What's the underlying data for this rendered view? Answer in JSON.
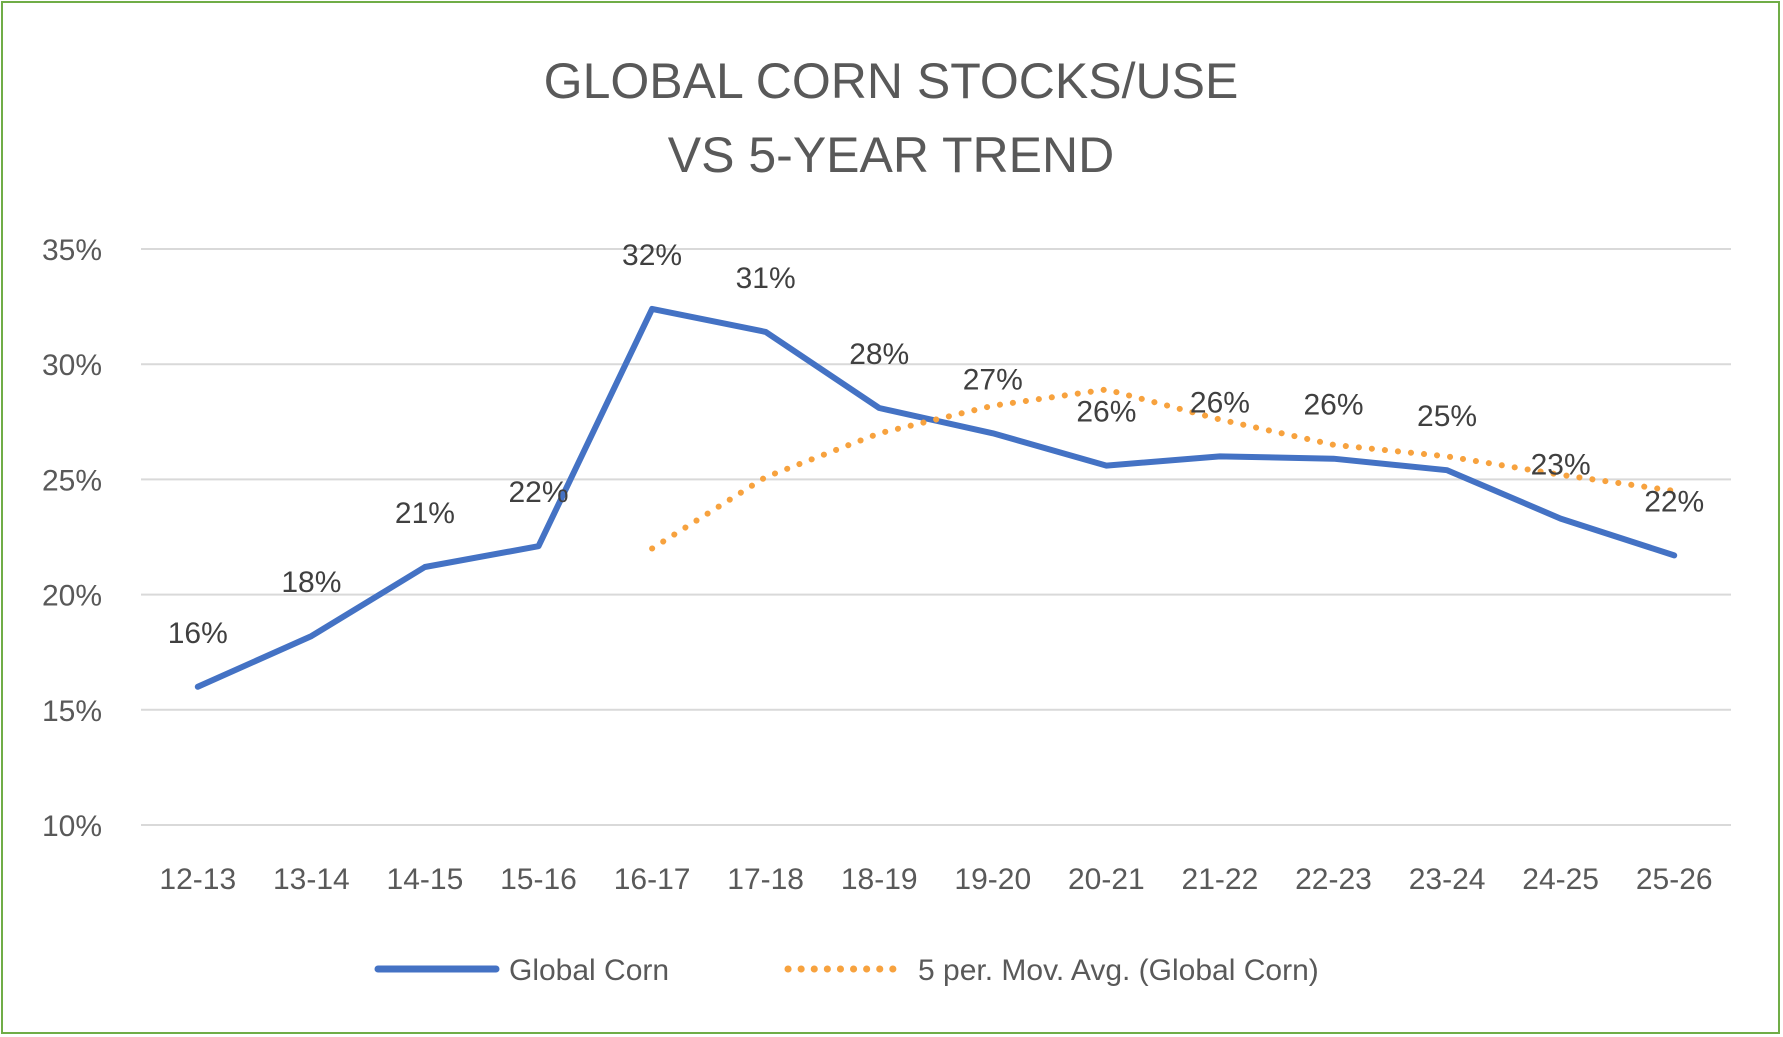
{
  "chart_data": {
    "type": "line",
    "title_lines": [
      "GLOBAL CORN STOCKS/USE",
      "VS 5-YEAR TREND"
    ],
    "categories": [
      "12-13",
      "13-14",
      "14-15",
      "15-16",
      "16-17",
      "17-18",
      "18-19",
      "19-20",
      "20-21",
      "21-22",
      "22-23",
      "23-24",
      "24-25",
      "25-26"
    ],
    "ylim": [
      10,
      35
    ],
    "yticks": [
      10,
      15,
      20,
      25,
      30,
      35
    ],
    "ytick_labels": [
      "10%",
      "15%",
      "20%",
      "25%",
      "30%",
      "35%"
    ],
    "grid": "horizontal",
    "legend_placement": "bottom",
    "series": [
      {
        "name": "Global Corn",
        "style": "solid",
        "color": "#4472c4",
        "values": [
          16.0,
          18.2,
          21.2,
          22.1,
          32.4,
          31.4,
          28.1,
          27.0,
          25.6,
          26.0,
          25.9,
          25.4,
          23.3,
          21.7
        ],
        "data_labels": [
          "16%",
          "18%",
          "21%",
          "22%",
          "32%",
          "31%",
          "28%",
          "27%",
          "26%",
          "26%",
          "26%",
          "25%",
          "23%",
          "22%"
        ]
      },
      {
        "name": "5 per. Mov. Avg. (Global Corn)",
        "style": "dotted",
        "color": "#f7a23e",
        "values": [
          null,
          null,
          null,
          null,
          22.0,
          25.1,
          27.0,
          28.2,
          28.9,
          27.6,
          26.5,
          26.0,
          25.2,
          24.5
        ]
      }
    ]
  }
}
